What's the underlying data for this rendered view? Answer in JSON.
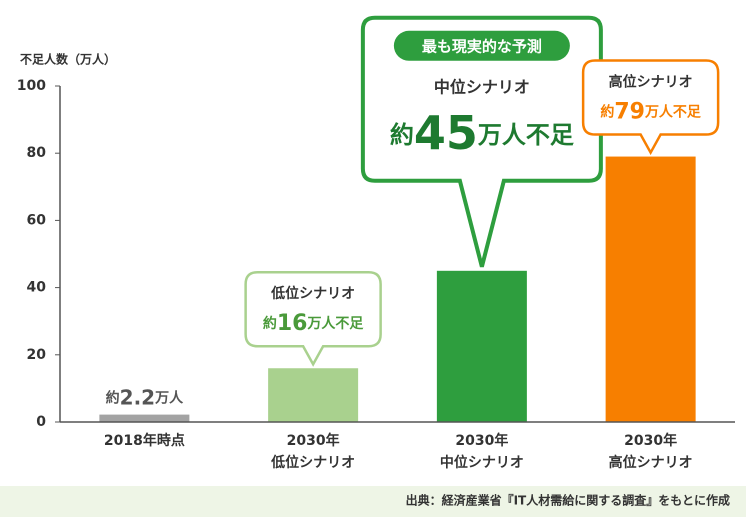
{
  "chart_data": {
    "type": "bar",
    "y_axis_label": "不足人数（万人）",
    "categories": [
      "2018年時点",
      "2030年\n低位シナリオ",
      "2030年\n中位シナリオ",
      "2030年\n高位シナリオ"
    ],
    "values": [
      2.2,
      16,
      45,
      79
    ],
    "value_labels": [
      "約2.2万人",
      "約16万人不足",
      "約45万人不足",
      "約79万人不足"
    ],
    "colors": [
      "#a3a3a3",
      "#a9d18e",
      "#2e9e3e",
      "#f77f00"
    ],
    "label_colors": [
      "#555555",
      "#4a9a3a",
      "#1e7a30",
      "#f77f00"
    ],
    "callouts": [
      null,
      {
        "name": "低位シナリオ"
      },
      {
        "name": "中位シナリオ",
        "badge": "最も現実的な予測"
      },
      {
        "name": "高位シナリオ"
      }
    ],
    "ylim": [
      0,
      100
    ],
    "yticks": [
      0,
      20,
      40,
      60,
      80,
      100
    ],
    "grid": false,
    "source": "出典：経済産業省『IT人材需給に関する調査』をもとに作成"
  }
}
